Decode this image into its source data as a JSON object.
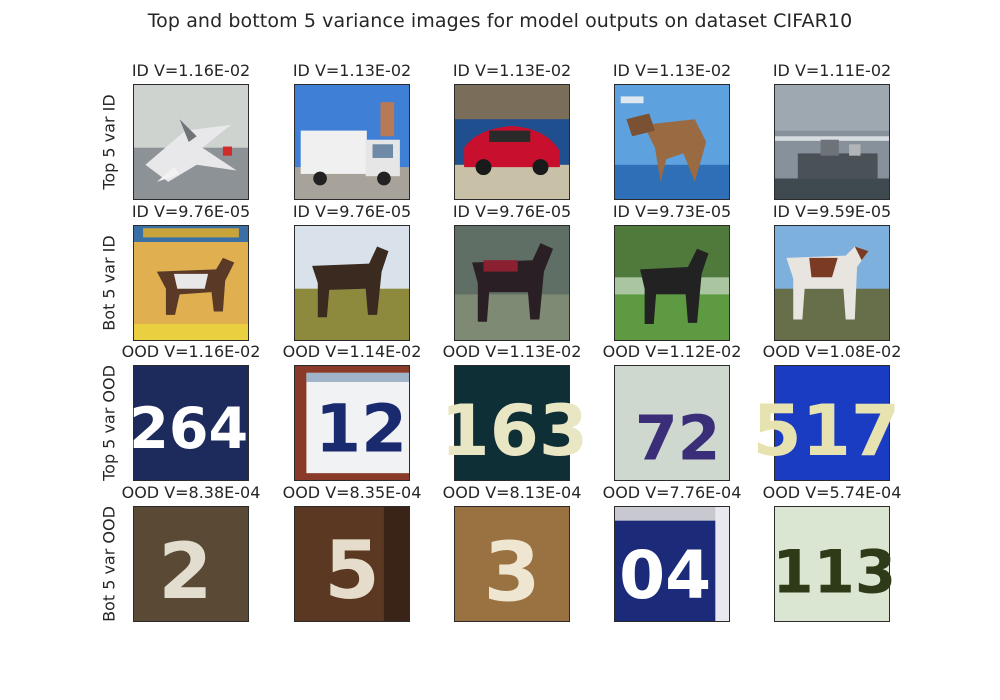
{
  "chart_data": {
    "type": "image-grid",
    "title": "Top and bottom 5 variance images for model outputs on dataset CIFAR10",
    "rows": [
      {
        "label": "Top 5 var ID",
        "cells": [
          {
            "caption": "ID V=1.16E-02",
            "variance": 0.0116,
            "content": "airplane-gray"
          },
          {
            "caption": "ID V=1.13E-02",
            "variance": 0.0113,
            "content": "truck-white"
          },
          {
            "caption": "ID V=1.13E-02",
            "variance": 0.0113,
            "content": "car-red"
          },
          {
            "caption": "ID V=1.13E-02",
            "variance": 0.0113,
            "content": "animal-blue-sky"
          },
          {
            "caption": "ID V=1.11E-02",
            "variance": 0.0111,
            "content": "ship-gray"
          }
        ]
      },
      {
        "label": "Bot 5 var ID",
        "cells": [
          {
            "caption": "ID V=9.76E-05",
            "variance": 9.76e-05,
            "content": "horse-poster"
          },
          {
            "caption": "ID V=9.76E-05",
            "variance": 9.76e-05,
            "content": "horse-brown-field"
          },
          {
            "caption": "ID V=9.76E-05",
            "variance": 9.76e-05,
            "content": "horse-dark"
          },
          {
            "caption": "ID V=9.73E-05",
            "variance": 9.73e-05,
            "content": "horse-black-grass"
          },
          {
            "caption": "ID V=9.59E-05",
            "variance": 9.59e-05,
            "content": "horse-pinto"
          }
        ]
      },
      {
        "label": "Top 5 var OOD",
        "cells": [
          {
            "caption": "OOD V=1.16E-02",
            "variance": 0.0116,
            "content": "digits-264"
          },
          {
            "caption": "OOD V=1.14E-02",
            "variance": 0.0114,
            "content": "digits-12"
          },
          {
            "caption": "OOD V=1.13E-02",
            "variance": 0.0113,
            "content": "digits-163"
          },
          {
            "caption": "OOD V=1.12E-02",
            "variance": 0.0112,
            "content": "digits-72"
          },
          {
            "caption": "OOD V=1.08E-02",
            "variance": 0.0108,
            "content": "digits-517"
          }
        ]
      },
      {
        "label": "Bot 5 var OOD",
        "cells": [
          {
            "caption": "OOD V=8.38E-04",
            "variance": 0.000838,
            "content": "digit-2-blurry"
          },
          {
            "caption": "OOD V=8.35E-04",
            "variance": 0.000835,
            "content": "digit-5-blurry"
          },
          {
            "caption": "OOD V=8.13E-04",
            "variance": 0.000813,
            "content": "digit-3-blurry"
          },
          {
            "caption": "OOD V=7.76E-04",
            "variance": 0.000776,
            "content": "digits-04"
          },
          {
            "caption": "OOD V=5.74E-04",
            "variance": 0.000574,
            "content": "digits-113"
          }
        ]
      }
    ]
  }
}
